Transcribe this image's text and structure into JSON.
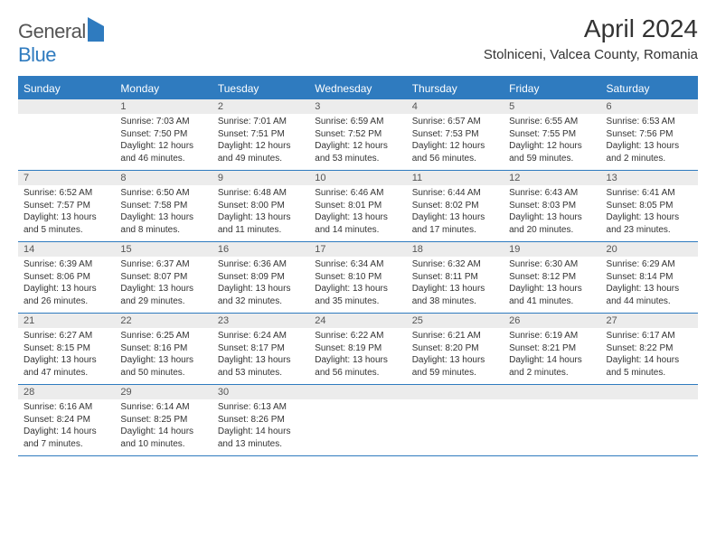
{
  "brand": {
    "word1": "General",
    "word2": "Blue"
  },
  "title": "April 2024",
  "location": "Stolniceni, Valcea County, Romania",
  "day_headers": [
    "Sunday",
    "Monday",
    "Tuesday",
    "Wednesday",
    "Thursday",
    "Friday",
    "Saturday"
  ],
  "colors": {
    "primary": "#2f7bbf",
    "header_bg": "#ececec",
    "text": "#333333"
  },
  "weeks": [
    [
      {
        "n": "",
        "sr": "",
        "ss": "",
        "dl": ""
      },
      {
        "n": "1",
        "sr": "Sunrise: 7:03 AM",
        "ss": "Sunset: 7:50 PM",
        "dl": "Daylight: 12 hours and 46 minutes."
      },
      {
        "n": "2",
        "sr": "Sunrise: 7:01 AM",
        "ss": "Sunset: 7:51 PM",
        "dl": "Daylight: 12 hours and 49 minutes."
      },
      {
        "n": "3",
        "sr": "Sunrise: 6:59 AM",
        "ss": "Sunset: 7:52 PM",
        "dl": "Daylight: 12 hours and 53 minutes."
      },
      {
        "n": "4",
        "sr": "Sunrise: 6:57 AM",
        "ss": "Sunset: 7:53 PM",
        "dl": "Daylight: 12 hours and 56 minutes."
      },
      {
        "n": "5",
        "sr": "Sunrise: 6:55 AM",
        "ss": "Sunset: 7:55 PM",
        "dl": "Daylight: 12 hours and 59 minutes."
      },
      {
        "n": "6",
        "sr": "Sunrise: 6:53 AM",
        "ss": "Sunset: 7:56 PM",
        "dl": "Daylight: 13 hours and 2 minutes."
      }
    ],
    [
      {
        "n": "7",
        "sr": "Sunrise: 6:52 AM",
        "ss": "Sunset: 7:57 PM",
        "dl": "Daylight: 13 hours and 5 minutes."
      },
      {
        "n": "8",
        "sr": "Sunrise: 6:50 AM",
        "ss": "Sunset: 7:58 PM",
        "dl": "Daylight: 13 hours and 8 minutes."
      },
      {
        "n": "9",
        "sr": "Sunrise: 6:48 AM",
        "ss": "Sunset: 8:00 PM",
        "dl": "Daylight: 13 hours and 11 minutes."
      },
      {
        "n": "10",
        "sr": "Sunrise: 6:46 AM",
        "ss": "Sunset: 8:01 PM",
        "dl": "Daylight: 13 hours and 14 minutes."
      },
      {
        "n": "11",
        "sr": "Sunrise: 6:44 AM",
        "ss": "Sunset: 8:02 PM",
        "dl": "Daylight: 13 hours and 17 minutes."
      },
      {
        "n": "12",
        "sr": "Sunrise: 6:43 AM",
        "ss": "Sunset: 8:03 PM",
        "dl": "Daylight: 13 hours and 20 minutes."
      },
      {
        "n": "13",
        "sr": "Sunrise: 6:41 AM",
        "ss": "Sunset: 8:05 PM",
        "dl": "Daylight: 13 hours and 23 minutes."
      }
    ],
    [
      {
        "n": "14",
        "sr": "Sunrise: 6:39 AM",
        "ss": "Sunset: 8:06 PM",
        "dl": "Daylight: 13 hours and 26 minutes."
      },
      {
        "n": "15",
        "sr": "Sunrise: 6:37 AM",
        "ss": "Sunset: 8:07 PM",
        "dl": "Daylight: 13 hours and 29 minutes."
      },
      {
        "n": "16",
        "sr": "Sunrise: 6:36 AM",
        "ss": "Sunset: 8:09 PM",
        "dl": "Daylight: 13 hours and 32 minutes."
      },
      {
        "n": "17",
        "sr": "Sunrise: 6:34 AM",
        "ss": "Sunset: 8:10 PM",
        "dl": "Daylight: 13 hours and 35 minutes."
      },
      {
        "n": "18",
        "sr": "Sunrise: 6:32 AM",
        "ss": "Sunset: 8:11 PM",
        "dl": "Daylight: 13 hours and 38 minutes."
      },
      {
        "n": "19",
        "sr": "Sunrise: 6:30 AM",
        "ss": "Sunset: 8:12 PM",
        "dl": "Daylight: 13 hours and 41 minutes."
      },
      {
        "n": "20",
        "sr": "Sunrise: 6:29 AM",
        "ss": "Sunset: 8:14 PM",
        "dl": "Daylight: 13 hours and 44 minutes."
      }
    ],
    [
      {
        "n": "21",
        "sr": "Sunrise: 6:27 AM",
        "ss": "Sunset: 8:15 PM",
        "dl": "Daylight: 13 hours and 47 minutes."
      },
      {
        "n": "22",
        "sr": "Sunrise: 6:25 AM",
        "ss": "Sunset: 8:16 PM",
        "dl": "Daylight: 13 hours and 50 minutes."
      },
      {
        "n": "23",
        "sr": "Sunrise: 6:24 AM",
        "ss": "Sunset: 8:17 PM",
        "dl": "Daylight: 13 hours and 53 minutes."
      },
      {
        "n": "24",
        "sr": "Sunrise: 6:22 AM",
        "ss": "Sunset: 8:19 PM",
        "dl": "Daylight: 13 hours and 56 minutes."
      },
      {
        "n": "25",
        "sr": "Sunrise: 6:21 AM",
        "ss": "Sunset: 8:20 PM",
        "dl": "Daylight: 13 hours and 59 minutes."
      },
      {
        "n": "26",
        "sr": "Sunrise: 6:19 AM",
        "ss": "Sunset: 8:21 PM",
        "dl": "Daylight: 14 hours and 2 minutes."
      },
      {
        "n": "27",
        "sr": "Sunrise: 6:17 AM",
        "ss": "Sunset: 8:22 PM",
        "dl": "Daylight: 14 hours and 5 minutes."
      }
    ],
    [
      {
        "n": "28",
        "sr": "Sunrise: 6:16 AM",
        "ss": "Sunset: 8:24 PM",
        "dl": "Daylight: 14 hours and 7 minutes."
      },
      {
        "n": "29",
        "sr": "Sunrise: 6:14 AM",
        "ss": "Sunset: 8:25 PM",
        "dl": "Daylight: 14 hours and 10 minutes."
      },
      {
        "n": "30",
        "sr": "Sunrise: 6:13 AM",
        "ss": "Sunset: 8:26 PM",
        "dl": "Daylight: 14 hours and 13 minutes."
      },
      {
        "n": "",
        "sr": "",
        "ss": "",
        "dl": ""
      },
      {
        "n": "",
        "sr": "",
        "ss": "",
        "dl": ""
      },
      {
        "n": "",
        "sr": "",
        "ss": "",
        "dl": ""
      },
      {
        "n": "",
        "sr": "",
        "ss": "",
        "dl": ""
      }
    ]
  ]
}
